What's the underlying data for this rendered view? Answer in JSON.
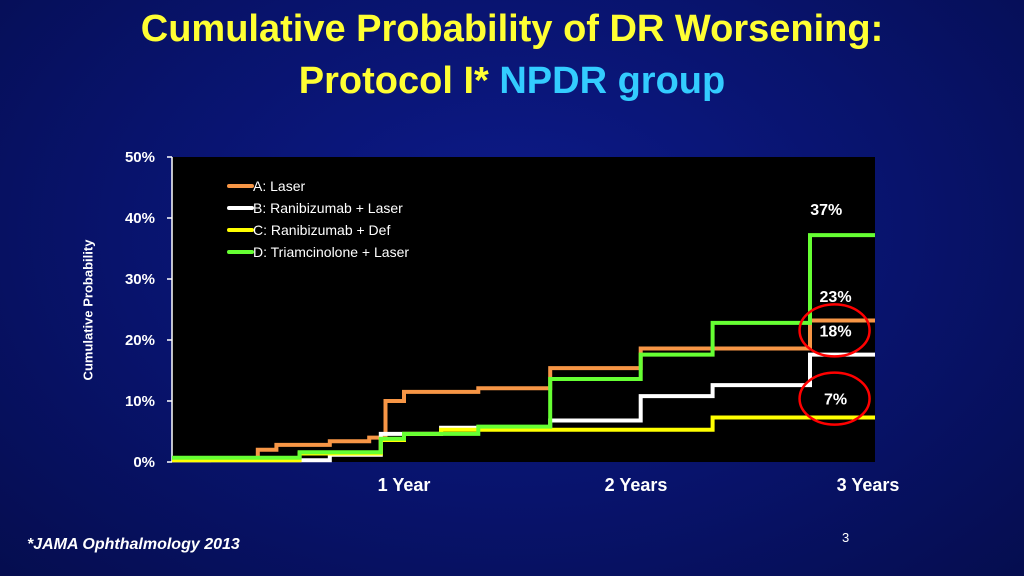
{
  "slide": {
    "title_line1": "Cumulative Probability of DR Worsening:",
    "title_line2_part1": "Protocol I*",
    "title_line2_part2": "NPDR group",
    "footnote": "*JAMA Ophthalmology 2013",
    "page_number": "3"
  },
  "colors": {
    "A": "#f79646",
    "B": "#ffffff",
    "C": "#ffff00",
    "D": "#66ff33",
    "highlight_circle": "#ff0000"
  },
  "chart_data": {
    "type": "line",
    "step": true,
    "title": "",
    "xlabel": "",
    "ylabel": "Cumulative Probability",
    "xlim": [
      0,
      3.03
    ],
    "ylim": [
      0,
      50
    ],
    "yticks": [
      0,
      10,
      20,
      30,
      40,
      50
    ],
    "ytick_labels": [
      "0%",
      "10%",
      "20%",
      "30%",
      "40%",
      "50%"
    ],
    "xticks": [
      1,
      2,
      3
    ],
    "xtick_labels": [
      "1 Year",
      "2 Years",
      "3 Years"
    ],
    "legend_position": "top-left",
    "series": [
      {
        "key": "A",
        "name": "A: Laser",
        "points": [
          [
            0,
            0.3
          ],
          [
            0.16,
            0.3
          ],
          [
            0.16,
            0.5
          ],
          [
            0.37,
            0.5
          ],
          [
            0.37,
            2
          ],
          [
            0.45,
            2
          ],
          [
            0.45,
            2.8
          ],
          [
            0.68,
            2.8
          ],
          [
            0.68,
            3.4
          ],
          [
            0.85,
            3.4
          ],
          [
            0.85,
            4
          ],
          [
            0.92,
            4
          ],
          [
            0.92,
            10
          ],
          [
            1.0,
            10
          ],
          [
            1.0,
            11.5
          ],
          [
            1.32,
            11.5
          ],
          [
            1.32,
            12.1
          ],
          [
            1.63,
            12.1
          ],
          [
            1.63,
            15.4
          ],
          [
            2.02,
            15.4
          ],
          [
            2.02,
            18.6
          ],
          [
            2.75,
            18.6
          ],
          [
            2.75,
            23.2
          ],
          [
            3.03,
            23.2
          ]
        ]
      },
      {
        "key": "B",
        "name": "B: Ranibizumab + Laser",
        "points": [
          [
            0,
            0.3
          ],
          [
            0.68,
            0.3
          ],
          [
            0.68,
            1.2
          ],
          [
            0.9,
            1.2
          ],
          [
            0.9,
            4.6
          ],
          [
            1.16,
            4.6
          ],
          [
            1.16,
            5.6
          ],
          [
            1.63,
            5.6
          ],
          [
            1.63,
            6.8
          ],
          [
            2.02,
            6.8
          ],
          [
            2.02,
            10.8
          ],
          [
            2.33,
            10.8
          ],
          [
            2.33,
            12.6
          ],
          [
            2.75,
            12.6
          ],
          [
            2.75,
            17.6
          ],
          [
            3.03,
            17.6
          ]
        ]
      },
      {
        "key": "C",
        "name": "C: Ranibizumab + Def",
        "points": [
          [
            0,
            0.3
          ],
          [
            0.55,
            0.3
          ],
          [
            0.55,
            1.4
          ],
          [
            0.9,
            1.4
          ],
          [
            0.9,
            3.6
          ],
          [
            1.0,
            3.6
          ],
          [
            1.0,
            4.6
          ],
          [
            1.16,
            4.6
          ],
          [
            1.16,
            5.3
          ],
          [
            2.33,
            5.3
          ],
          [
            2.33,
            7.3
          ],
          [
            3.03,
            7.3
          ]
        ]
      },
      {
        "key": "D",
        "name": "D: Triamcinolone + Laser",
        "points": [
          [
            0,
            0.7
          ],
          [
            0.55,
            0.7
          ],
          [
            0.55,
            1.6
          ],
          [
            0.9,
            1.6
          ],
          [
            0.9,
            3.8
          ],
          [
            1.0,
            3.8
          ],
          [
            1.0,
            4.6
          ],
          [
            1.32,
            4.6
          ],
          [
            1.32,
            5.8
          ],
          [
            1.63,
            5.8
          ],
          [
            1.63,
            13.6
          ],
          [
            2.02,
            13.6
          ],
          [
            2.02,
            17.6
          ],
          [
            2.33,
            17.6
          ],
          [
            2.33,
            22.8
          ],
          [
            2.75,
            22.8
          ],
          [
            2.75,
            37.2
          ],
          [
            3.03,
            37.2
          ]
        ]
      }
    ],
    "annotations": [
      {
        "text": "37%",
        "series": "D",
        "x": 2.82,
        "y": 40.5,
        "circled": false
      },
      {
        "text": "23%",
        "series": "A",
        "x": 2.86,
        "y": 26.2,
        "circled": false
      },
      {
        "text": "18%",
        "series": "B",
        "x": 2.86,
        "y": 20.6,
        "circled": true
      },
      {
        "text": "7%",
        "series": "C",
        "x": 2.86,
        "y": 9.4,
        "circled": true
      }
    ]
  }
}
